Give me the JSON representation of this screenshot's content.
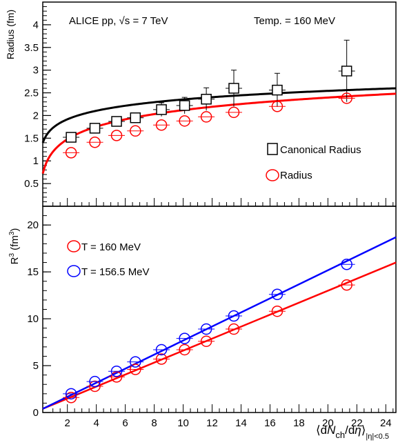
{
  "chart_data": [
    {
      "type": "line",
      "panel": "top",
      "ylabel": "Radius (fm)",
      "ylim": [
        0,
        4.5
      ],
      "xlim": [
        0.3,
        24.7
      ],
      "yticks": [
        0.5,
        1,
        1.5,
        2,
        2.5,
        3,
        3.5,
        4
      ],
      "ytick_labels": [
        "0.5",
        "1",
        "1.5",
        "2",
        "2.5",
        "3",
        "3.5",
        "4"
      ],
      "annotations": {
        "system": "ALICE pp, √s = 7 TeV",
        "temperature": "Temp. = 160 MeV"
      },
      "legend": {
        "placement": "right",
        "entries": [
          "Canonical Radius",
          "Radius"
        ]
      },
      "series": [
        {
          "name": "Canonical Radius",
          "marker": "square",
          "color": "#000000",
          "x": [
            2.26,
            3.9,
            5.4,
            6.7,
            8.5,
            10.1,
            11.6,
            13.5,
            16.5,
            21.3
          ],
          "y": [
            1.52,
            1.72,
            1.87,
            1.95,
            2.13,
            2.22,
            2.36,
            2.6,
            2.56,
            2.98
          ],
          "y_err": [
            0.05,
            0.07,
            0.08,
            0.1,
            0.15,
            0.18,
            0.25,
            0.4,
            0.37,
            0.68
          ]
        },
        {
          "name": "Radius",
          "marker": "circle",
          "color": "#ff0000",
          "x": [
            2.26,
            3.9,
            5.4,
            6.7,
            8.5,
            10.1,
            11.6,
            13.5,
            16.5,
            21.3
          ],
          "y": [
            1.18,
            1.41,
            1.56,
            1.66,
            1.79,
            1.88,
            1.97,
            2.07,
            2.2,
            2.38
          ]
        },
        {
          "name": "canonical-fit",
          "type": "curve",
          "color": "#000000",
          "x_start": 0.3,
          "y_at_start": 1.4,
          "y_at_end": 2.6
        },
        {
          "name": "radius-fit",
          "type": "curve",
          "color": "#ff0000",
          "x_start": 0.3,
          "y_at_start": 0.72,
          "y_at_end": 2.48
        }
      ]
    },
    {
      "type": "line",
      "panel": "bottom",
      "ylabel": "R³ (fm³)",
      "ylim": [
        0,
        22
      ],
      "xlim": [
        0.3,
        24.7
      ],
      "yticks": [
        0,
        5,
        10,
        15,
        20
      ],
      "ytick_labels": [
        "0",
        "5",
        "10",
        "15",
        "20"
      ],
      "xlabel": "⟨dN_ch/dη⟩_|η|<0.5",
      "xticks": [
        2,
        4,
        6,
        8,
        10,
        12,
        14,
        16,
        18,
        20,
        22,
        24
      ],
      "xtick_labels": [
        "2",
        "4",
        "6",
        "8",
        "10",
        "12",
        "14",
        "16",
        "18",
        "20",
        "22",
        "24"
      ],
      "legend": {
        "placement": "top-left",
        "entries": [
          "T = 160 MeV",
          "T = 156.5 MeV"
        ]
      },
      "series": [
        {
          "name": "T = 160 MeV",
          "marker": "circle",
          "color": "#ff0000",
          "x": [
            2.26,
            3.9,
            5.4,
            6.7,
            8.5,
            10.1,
            11.6,
            13.5,
            16.5,
            21.3
          ],
          "y": [
            1.6,
            2.8,
            3.8,
            4.6,
            5.7,
            6.7,
            7.6,
            8.9,
            10.8,
            13.6
          ]
        },
        {
          "name": "T = 156.5 MeV",
          "marker": "circle",
          "color": "#0000ff",
          "x": [
            2.26,
            3.9,
            5.4,
            6.7,
            8.5,
            10.1,
            11.6,
            13.5,
            16.5,
            21.3
          ],
          "y": [
            2.0,
            3.3,
            4.4,
            5.4,
            6.7,
            7.9,
            8.9,
            10.3,
            12.6,
            15.8
          ]
        },
        {
          "name": "fit-160",
          "type": "line",
          "color": "#ff0000",
          "y_at_start": 0.4,
          "y_at_end": 16.0
        },
        {
          "name": "fit-156.5",
          "type": "line",
          "color": "#0000ff",
          "y_at_start": 0.4,
          "y_at_end": 18.7
        }
      ]
    }
  ]
}
